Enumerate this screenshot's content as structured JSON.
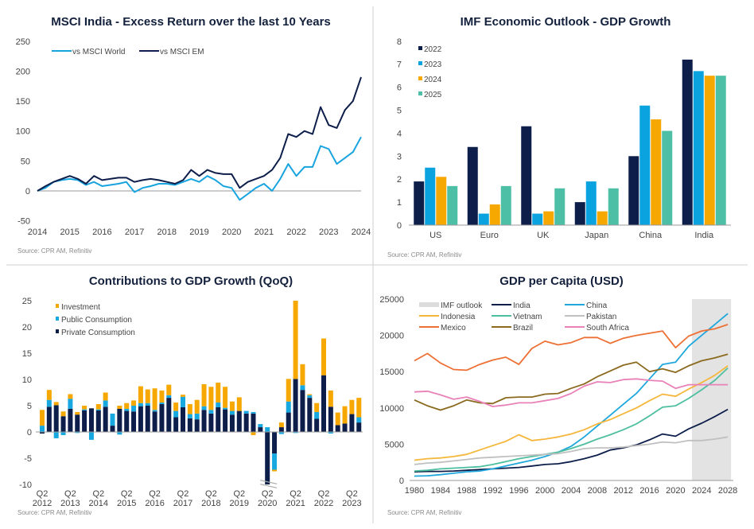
{
  "chart_data": [
    {
      "type": "line",
      "title": "MSCI India - Excess Return over the last 10 Years",
      "source": "Source: CPR AM, Refinitiv",
      "xlim": [
        2014,
        2024
      ],
      "ylim": [
        -50,
        250
      ],
      "yticks": [
        -50,
        0,
        50,
        100,
        150,
        200,
        250
      ],
      "xticks": [
        2014,
        2015,
        2016,
        2017,
        2018,
        2019,
        2020,
        2021,
        2022,
        2023,
        2024
      ],
      "legend_placement": "top-left",
      "x": [
        2014,
        2014.25,
        2014.5,
        2014.75,
        2015,
        2015.25,
        2015.5,
        2015.75,
        2016,
        2016.25,
        2016.5,
        2016.75,
        2017,
        2017.25,
        2017.5,
        2017.75,
        2018,
        2018.25,
        2018.5,
        2018.75,
        2019,
        2019.25,
        2019.5,
        2019.75,
        2020,
        2020.25,
        2020.5,
        2020.75,
        2021,
        2021.25,
        2021.5,
        2021.75,
        2022,
        2022.25,
        2022.5,
        2022.75,
        2023,
        2023.25,
        2023.5,
        2023.75,
        2024
      ],
      "series": [
        {
          "name": "vs MSCI World",
          "color": "#18a4df",
          "values": [
            0,
            5,
            15,
            18,
            20,
            18,
            10,
            15,
            8,
            10,
            12,
            15,
            -2,
            5,
            8,
            12,
            12,
            10,
            15,
            20,
            15,
            25,
            18,
            8,
            5,
            -15,
            -5,
            5,
            12,
            0,
            20,
            45,
            25,
            40,
            40,
            75,
            70,
            45,
            55,
            65,
            90
          ]
        },
        {
          "name": "vs MSCI EM",
          "color": "#0d1e4a",
          "values": [
            0,
            8,
            15,
            20,
            25,
            20,
            12,
            25,
            18,
            20,
            22,
            22,
            15,
            18,
            20,
            18,
            15,
            12,
            18,
            35,
            25,
            35,
            30,
            28,
            28,
            5,
            15,
            20,
            25,
            35,
            55,
            95,
            90,
            100,
            95,
            140,
            110,
            105,
            135,
            150,
            190
          ]
        }
      ]
    },
    {
      "type": "bar",
      "title": "IMF Economic Outlook - GDP Growth",
      "source": "Source: CPR AM, Refinitiv",
      "ylim": [
        0,
        8
      ],
      "yticks": [
        0,
        1,
        2,
        3,
        4,
        5,
        6,
        7,
        8
      ],
      "legend_placement": "top-left",
      "categories": [
        "US",
        "Euro",
        "UK",
        "Japan",
        "China",
        "India"
      ],
      "series": [
        {
          "name": "2022",
          "color": "#0d1e4a",
          "values": [
            1.9,
            3.4,
            4.3,
            1.0,
            3.0,
            7.2
          ]
        },
        {
          "name": "2023",
          "color": "#0aa3e0",
          "values": [
            2.5,
            0.5,
            0.5,
            1.9,
            5.2,
            6.7
          ]
        },
        {
          "name": "2024",
          "color": "#f7a800",
          "values": [
            2.1,
            0.9,
            0.6,
            0.6,
            4.6,
            6.5
          ]
        },
        {
          "name": "2025",
          "color": "#4dbfa6",
          "values": [
            1.7,
            1.7,
            1.6,
            1.6,
            4.1,
            6.5
          ]
        }
      ]
    },
    {
      "type": "bar",
      "stacked": true,
      "title": "Contributions to GDP Growth (QoQ)",
      "source": "Source: CPR AM, Refinitiv",
      "ylim": [
        -10,
        25
      ],
      "yticks": [
        -10,
        -5,
        0,
        5,
        10,
        15,
        20,
        25
      ],
      "axis_break_at": "Q2 2020",
      "legend_placement": "top-left",
      "xtick_labels": [
        [
          "Q2",
          "2012"
        ],
        [
          "Q2",
          "2013"
        ],
        [
          "Q2",
          "2014"
        ],
        [
          "Q2",
          "2015"
        ],
        [
          "Q2",
          "2016"
        ],
        [
          "Q2",
          "2017"
        ],
        [
          "Q2",
          "2018"
        ],
        [
          "Q2",
          "2019"
        ],
        [
          "Q2",
          "2020"
        ],
        [
          "Q2",
          "2021"
        ],
        [
          "Q2",
          "2022"
        ],
        [
          "Q2",
          "2023"
        ]
      ],
      "categories": [
        "Q2 2012",
        "Q3 2012",
        "Q4 2012",
        "Q1 2013",
        "Q2 2013",
        "Q3 2013",
        "Q4 2013",
        "Q1 2014",
        "Q2 2014",
        "Q3 2014",
        "Q4 2014",
        "Q1 2015",
        "Q2 2015",
        "Q3 2015",
        "Q4 2015",
        "Q1 2016",
        "Q2 2016",
        "Q3 2016",
        "Q4 2016",
        "Q1 2017",
        "Q2 2017",
        "Q3 2017",
        "Q4 2017",
        "Q1 2018",
        "Q2 2018",
        "Q3 2018",
        "Q4 2018",
        "Q1 2019",
        "Q2 2019",
        "Q3 2019",
        "Q4 2019",
        "Q1 2020",
        "Q2 2020",
        "Q3 2020",
        "Q4 2020",
        "Q1 2021",
        "Q2 2021",
        "Q3 2021",
        "Q4 2021",
        "Q1 2022",
        "Q2 2022",
        "Q3 2022",
        "Q4 2022",
        "Q1 2023",
        "Q2 2023",
        "Q3 2023"
      ],
      "series": [
        {
          "name": "Private Consumption",
          "color": "#0d1e4a",
          "values": [
            -0.3,
            4.8,
            5.1,
            3.0,
            4.4,
            3.3,
            4.1,
            4.5,
            4.1,
            4.8,
            1.2,
            4.4,
            4.0,
            3.9,
            4.9,
            5.0,
            3.9,
            5.3,
            6.5,
            2.8,
            4.7,
            2.6,
            2.4,
            4.2,
            3.5,
            4.7,
            4.3,
            3.3,
            4.0,
            3.5,
            3.5,
            0.9,
            -10,
            -4.1,
            0.9,
            3.7,
            10.1,
            8.0,
            6.5,
            2.5,
            10.8,
            4.8,
            1.3,
            1.6,
            3.4,
            1.8
          ]
        },
        {
          "name": "Public Consumption",
          "color": "#18a8e0",
          "values": [
            1.2,
            1.3,
            -1.2,
            -0.6,
            1.9,
            -0.2,
            0.2,
            -1.5,
            0.2,
            1.2,
            2.3,
            -0.5,
            0.4,
            1.1,
            0.6,
            0.5,
            0.3,
            0.3,
            0.5,
            1.2,
            2.0,
            0.8,
            1.1,
            0.7,
            0.7,
            0.9,
            0.3,
            0.7,
            0,
            0.5,
            0.3,
            0.6,
            0.9,
            -3.1,
            -0.4,
            2.1,
            -0.2,
            0.9,
            0.5,
            1.3,
            0,
            -0.3,
            0,
            0,
            0,
            1.0
          ]
        },
        {
          "name": "Investment",
          "color": "#f7a800",
          "values": [
            3.0,
            1.9,
            0.6,
            0.9,
            0.9,
            0.5,
            0.7,
            0,
            1.0,
            1.5,
            0,
            0.6,
            1.1,
            1.0,
            3.2,
            2.6,
            4.1,
            2.3,
            2.0,
            1.6,
            0.4,
            1.9,
            2.6,
            4.2,
            4.4,
            3.8,
            4.0,
            1.8,
            2.6,
            0,
            -0.6,
            0,
            0,
            -0.3,
            0.9,
            4.3,
            14.9,
            4.0,
            0.2,
            1.7,
            7.0,
            3.1,
            2.4,
            3.3,
            2.7,
            3.7
          ]
        }
      ]
    },
    {
      "type": "line",
      "title": "GDP per Capita (USD)",
      "source": "Source: CPR AM, Refinitiv",
      "xlim": [
        1980,
        2028
      ],
      "ylim": [
        0,
        25000
      ],
      "yticks": [
        0,
        5000,
        10000,
        15000,
        20000,
        25000
      ],
      "xticks": [
        1980,
        1984,
        1988,
        1992,
        1996,
        2000,
        2004,
        2008,
        2012,
        2016,
        2020,
        2024,
        2028
      ],
      "shaded_region": {
        "label": "IMF outlook",
        "from": 2022.5,
        "to": 2028.5,
        "color": "#e3e3e3"
      },
      "legend_placement": "top",
      "x": [
        1980,
        1982,
        1984,
        1986,
        1988,
        1990,
        1992,
        1994,
        1996,
        1998,
        2000,
        2002,
        2004,
        2006,
        2008,
        2010,
        2012,
        2014,
        2016,
        2018,
        2020,
        2022,
        2024,
        2026,
        2028
      ],
      "series": [
        {
          "name": "India",
          "color": "#0d1e4a",
          "values": [
            1200,
            1250,
            1250,
            1300,
            1400,
            1500,
            1600,
            1700,
            1800,
            2000,
            2200,
            2300,
            2600,
            3000,
            3500,
            4200,
            4500,
            4900,
            5600,
            6400,
            6100,
            7100,
            7900,
            8800,
            9800
          ]
        },
        {
          "name": "China",
          "color": "#1fa7dc",
          "values": [
            600,
            650,
            800,
            1000,
            1200,
            1300,
            1600,
            2000,
            2400,
            2800,
            3300,
            3900,
            4700,
            6000,
            7500,
            9000,
            10500,
            12000,
            14000,
            16000,
            16300,
            18500,
            20000,
            21500,
            23000
          ]
        },
        {
          "name": "Indonesia",
          "color": "#f5b73b",
          "values": [
            2800,
            3000,
            3100,
            3300,
            3600,
            4200,
            4800,
            5400,
            6300,
            5500,
            5700,
            6000,
            6400,
            7000,
            7800,
            8400,
            9200,
            10000,
            11000,
            11900,
            11600,
            12600,
            13500,
            14500,
            15800
          ]
        },
        {
          "name": "Vietnam",
          "color": "#4dbfa0",
          "values": [
            1300,
            1400,
            1600,
            1700,
            1800,
            1900,
            2200,
            2600,
            3000,
            3300,
            3600,
            3900,
            4400,
            5000,
            5700,
            6300,
            7000,
            7800,
            8900,
            10100,
            10300,
            11300,
            12500,
            13800,
            15500
          ]
        },
        {
          "name": "Pakistan",
          "color": "#c0c0c0",
          "values": [
            2200,
            2400,
            2500,
            2700,
            2900,
            3100,
            3200,
            3300,
            3400,
            3500,
            3600,
            3700,
            4000,
            4400,
            4500,
            4500,
            4600,
            4800,
            5000,
            5300,
            5200,
            5500,
            5500,
            5700,
            6000
          ]
        },
        {
          "name": "Mexico",
          "color": "#ed7034",
          "values": [
            16500,
            17500,
            16200,
            15300,
            15200,
            16000,
            16600,
            17000,
            16000,
            18200,
            19200,
            18700,
            19000,
            19700,
            19700,
            18900,
            19600,
            20000,
            20300,
            20600,
            18300,
            19900,
            20600,
            20900,
            21500
          ]
        },
        {
          "name": "Brazil",
          "color": "#8b6a1f",
          "values": [
            11100,
            10300,
            9700,
            10300,
            11100,
            10700,
            10600,
            11400,
            11500,
            11500,
            11900,
            12000,
            12700,
            13300,
            14300,
            15100,
            15900,
            16300,
            15000,
            15400,
            14900,
            15800,
            16500,
            16900,
            17400
          ]
        },
        {
          "name": "South Africa",
          "color": "#e982b8",
          "values": [
            12200,
            12300,
            11800,
            11200,
            11500,
            10900,
            10200,
            10400,
            10700,
            10700,
            11000,
            11300,
            12000,
            13000,
            13600,
            13500,
            13900,
            14000,
            13800,
            13700,
            12700,
            13200,
            13200,
            13200,
            13200
          ]
        }
      ]
    }
  ]
}
